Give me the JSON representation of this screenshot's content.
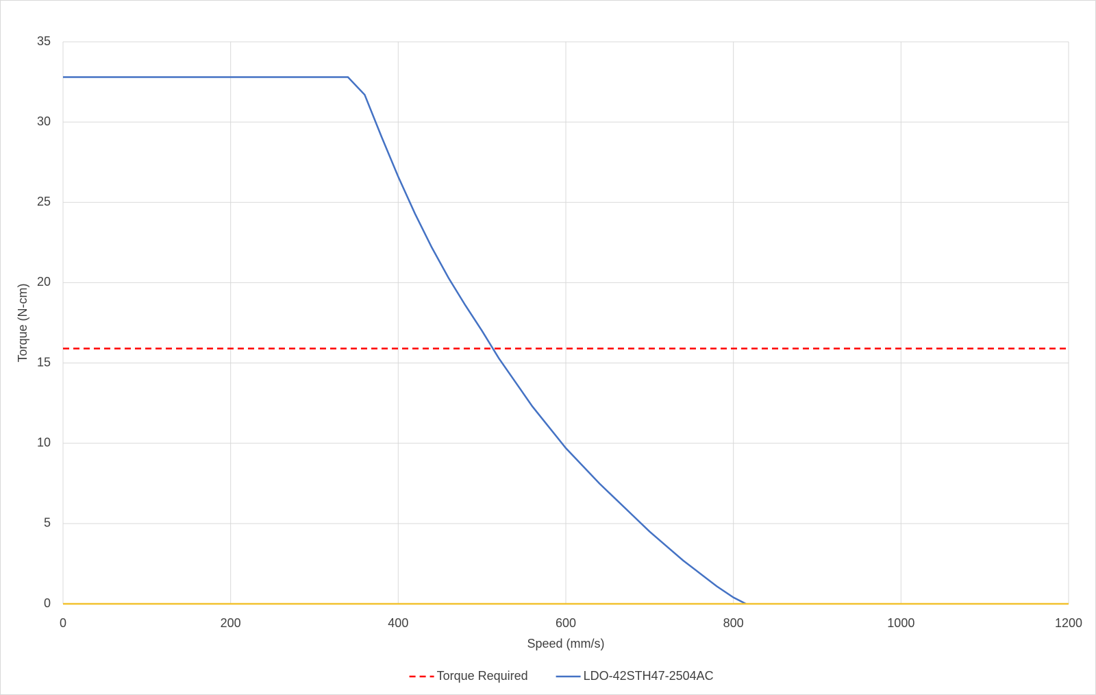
{
  "chart_data": {
    "type": "line",
    "x_label": "Speed (mm/s)",
    "y_label": "Torque (N-cm)",
    "xlim": [
      0,
      1200
    ],
    "xticks": [
      0,
      200,
      400,
      600,
      800,
      1000,
      1200
    ],
    "ylim": [
      0,
      35
    ],
    "yticks": [
      0,
      5,
      10,
      15,
      20,
      25,
      30,
      35
    ],
    "grid": true,
    "legend": "bottom",
    "series": [
      {
        "name": "Torque Required",
        "color": "#ff0000",
        "dash": true,
        "x": [
          0,
          1200
        ],
        "values": [
          15.9,
          15.9
        ]
      },
      {
        "name": "LDO-42STH47-2504AC",
        "color": "#4472c4",
        "dash": false,
        "x": [
          0,
          340,
          360,
          380,
          400,
          420,
          440,
          460,
          480,
          500,
          520,
          540,
          560,
          580,
          600,
          620,
          640,
          660,
          680,
          700,
          720,
          740,
          760,
          780,
          800,
          815
        ],
        "values": [
          32.8,
          32.8,
          31.7,
          29.1,
          26.6,
          24.3,
          22.2,
          20.3,
          18.6,
          17.0,
          15.3,
          13.8,
          12.3,
          11.0,
          9.7,
          8.6,
          7.5,
          6.5,
          5.5,
          4.5,
          3.6,
          2.7,
          1.9,
          1.1,
          0.4,
          0
        ]
      },
      {
        "color": "#f2c12e",
        "dash": false,
        "x": [
          0,
          1200
        ],
        "values": [
          0,
          0
        ]
      }
    ]
  }
}
